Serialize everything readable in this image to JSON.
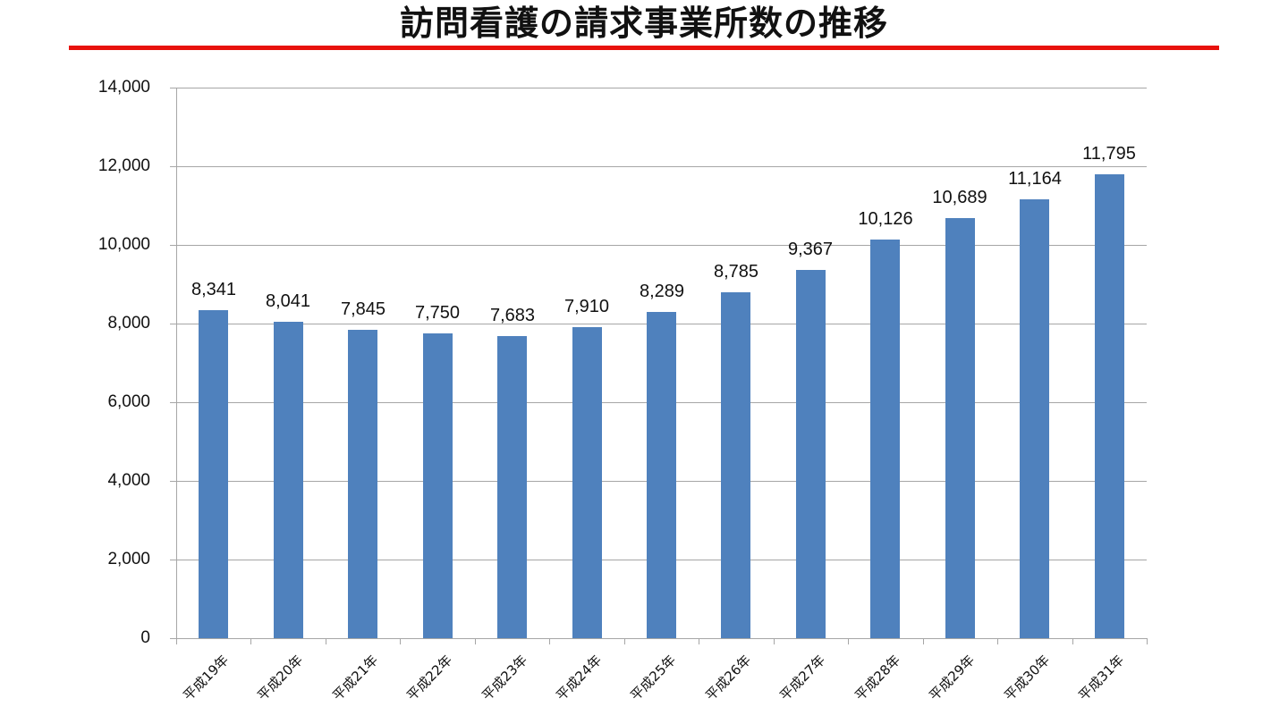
{
  "title": "訪問看護の請求事業所数の推移",
  "colors": {
    "title_rule": "#e8120c",
    "bar": "#4f81bd",
    "grid": "#a6a6a6"
  },
  "y_ticks": [
    "0",
    "2,000",
    "4,000",
    "6,000",
    "8,000",
    "10,000",
    "12,000",
    "14,000"
  ],
  "chart_data": {
    "type": "bar",
    "title": "訪問看護の請求事業所数の推移",
    "xlabel": "",
    "ylabel": "",
    "categories": [
      "平成19年",
      "平成20年",
      "平成21年",
      "平成22年",
      "平成23年",
      "平成24年",
      "平成25年",
      "平成26年",
      "平成27年",
      "平成28年",
      "平成29年",
      "平成30年",
      "平成31年"
    ],
    "values": [
      8341,
      8041,
      7845,
      7750,
      7683,
      7910,
      8289,
      8785,
      9367,
      10126,
      10689,
      11164,
      11795
    ],
    "value_labels": [
      "8,341",
      "8,041",
      "7,845",
      "7,750",
      "7,683",
      "7,910",
      "8,289",
      "8,785",
      "9,367",
      "10,126",
      "10,689",
      "11,164",
      "11,795"
    ],
    "ylim": [
      0,
      14000
    ],
    "y_tick_step": 2000,
    "grid": true,
    "legend": "none",
    "x_label_rotation": -45
  }
}
